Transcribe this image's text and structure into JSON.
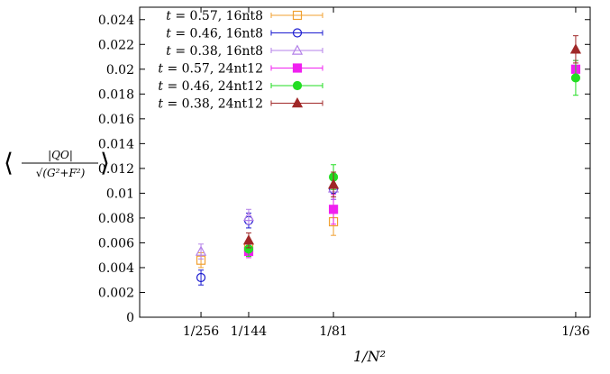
{
  "chart_data": {
    "type": "scatter",
    "xlabel": "1/N²",
    "ylabel_num": "|QO|",
    "ylabel_den": "√(G²+F²)",
    "ylim": [
      0,
      0.025
    ],
    "yticks": [
      {
        "value": 0,
        "label": "0"
      },
      {
        "value": 0.002,
        "label": "0.002"
      },
      {
        "value": 0.004,
        "label": "0.004"
      },
      {
        "value": 0.006,
        "label": "0.006"
      },
      {
        "value": 0.008,
        "label": "0.008"
      },
      {
        "value": 0.01,
        "label": "0.01"
      },
      {
        "value": 0.012,
        "label": "0.012"
      },
      {
        "value": 0.014,
        "label": "0.014"
      },
      {
        "value": 0.016,
        "label": "0.016"
      },
      {
        "value": 0.018,
        "label": "0.018"
      },
      {
        "value": 0.02,
        "label": "0.02"
      },
      {
        "value": 0.022,
        "label": "0.022"
      },
      {
        "value": 0.024,
        "label": "0.024"
      }
    ],
    "xlim": [
      0.0,
      0.0287
    ],
    "xticks": [
      {
        "value": 0.00390625,
        "label": "1/256"
      },
      {
        "value": 0.00694444,
        "label": "1/144"
      },
      {
        "value": 0.01234568,
        "label": "1/81"
      },
      {
        "value": 0.02777778,
        "label": "1/36"
      }
    ],
    "legend_position": "top-left",
    "series": [
      {
        "name": "t = 0.57, 16nt8",
        "t_value": "0.57",
        "ensemble": "16nt8",
        "color": "#f0a030",
        "marker": "square-open",
        "points": [
          {
            "x": 0.00390625,
            "y": 0.0046,
            "err": 0.0006
          },
          {
            "x": 0.00694444,
            "y": 0.0056,
            "err": 0.0006
          },
          {
            "x": 0.01234568,
            "y": 0.0077,
            "err": 0.0011
          }
        ]
      },
      {
        "name": "t = 0.46, 16nt8",
        "t_value": "0.46",
        "ensemble": "16nt8",
        "color": "#1c1cd0",
        "marker": "circle-open",
        "points": [
          {
            "x": 0.00390625,
            "y": 0.0032,
            "err": 0.0006
          },
          {
            "x": 0.00694444,
            "y": 0.0078,
            "err": 0.0006
          },
          {
            "x": 0.01234568,
            "y": 0.0103,
            "err": 0.0008
          }
        ]
      },
      {
        "name": "t = 0.38, 16nt8",
        "t_value": "0.38",
        "ensemble": "16nt8",
        "color": "#b482e8",
        "marker": "triangle-open",
        "points": [
          {
            "x": 0.00390625,
            "y": 0.0053,
            "err": 0.0006
          },
          {
            "x": 0.00694444,
            "y": 0.0081,
            "err": 0.0006
          },
          {
            "x": 0.01234568,
            "y": 0.0104,
            "err": 0.0009
          }
        ]
      },
      {
        "name": "t = 0.57, 24nt12",
        "t_value": "0.57",
        "ensemble": "24nt12",
        "color": "#f020f0",
        "marker": "square-filled",
        "points": [
          {
            "x": 0.00694444,
            "y": 0.0053,
            "err": 0.0005
          },
          {
            "x": 0.01234568,
            "y": 0.0087,
            "err": 0.0012
          },
          {
            "x": 0.02777778,
            "y": 0.02,
            "err": 0.0007
          }
        ]
      },
      {
        "name": "t = 0.46, 24nt12",
        "t_value": "0.46",
        "ensemble": "24nt12",
        "color": "#22dd22",
        "marker": "circle-filled",
        "points": [
          {
            "x": 0.00694444,
            "y": 0.0055,
            "err": 0.0006
          },
          {
            "x": 0.01234568,
            "y": 0.0113,
            "err": 0.001
          },
          {
            "x": 0.02777778,
            "y": 0.0193,
            "err": 0.0014
          }
        ]
      },
      {
        "name": "t = 0.38, 24nt12",
        "t_value": "0.38",
        "ensemble": "24nt12",
        "color": "#a02828",
        "marker": "triangle-filled",
        "points": [
          {
            "x": 0.00694444,
            "y": 0.0062,
            "err": 0.0006
          },
          {
            "x": 0.01234568,
            "y": 0.0107,
            "err": 0.001
          },
          {
            "x": 0.02777778,
            "y": 0.0216,
            "err": 0.0011
          }
        ]
      }
    ]
  }
}
